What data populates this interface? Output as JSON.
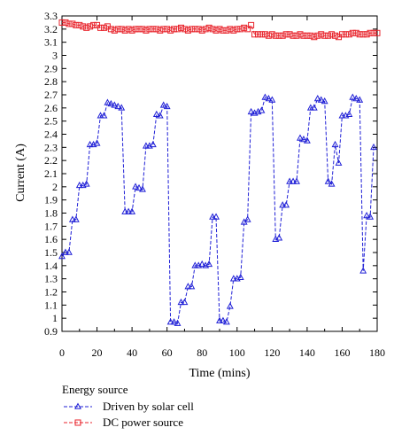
{
  "chart_data": {
    "type": "line",
    "xlabel": "Time (mins)",
    "ylabel": "Current (A)",
    "xlim": [
      0,
      180
    ],
    "ylim": [
      0.9,
      3.3
    ],
    "x_ticks": [
      0,
      20,
      40,
      60,
      80,
      100,
      120,
      140,
      160,
      180
    ],
    "y_ticks": [
      0.9,
      1,
      1.1,
      1.2,
      1.3,
      1.4,
      1.5,
      1.6,
      1.7,
      1.8,
      1.9,
      2,
      2.1,
      2.2,
      2.3,
      2.4,
      2.5,
      2.6,
      2.7,
      2.8,
      2.9,
      3,
      3.1,
      3.2,
      3.3
    ],
    "legend": {
      "title": "Energy source",
      "placement": "bottom-left"
    },
    "series": [
      {
        "name": "Driven by solar cell",
        "color": "#1f1fd6",
        "marker": "triangle",
        "line_style": "dashed",
        "x": [
          0,
          2,
          4,
          6,
          8,
          10,
          12,
          14,
          16,
          18,
          20,
          22,
          24,
          26,
          28,
          30,
          32,
          34,
          36,
          38,
          40,
          42,
          44,
          46,
          48,
          50,
          52,
          54,
          56,
          58,
          60,
          62,
          64,
          66,
          68,
          70,
          72,
          74,
          76,
          78,
          80,
          82,
          84,
          86,
          88,
          90,
          92,
          94,
          96,
          98,
          100,
          102,
          104,
          106,
          108,
          110,
          112,
          114,
          116,
          118,
          120,
          122,
          124,
          126,
          128,
          130,
          132,
          134,
          136,
          138,
          140,
          142,
          144,
          146,
          148,
          150,
          152,
          154,
          156,
          158,
          160,
          162,
          164,
          166,
          168,
          170,
          172,
          174,
          176,
          178
        ],
        "y": [
          1.47,
          1.5,
          1.5,
          1.75,
          1.75,
          2.01,
          2.01,
          2.02,
          2.32,
          2.32,
          2.33,
          2.54,
          2.54,
          2.64,
          2.63,
          2.62,
          2.61,
          2.6,
          1.81,
          1.81,
          1.81,
          2.0,
          1.99,
          1.98,
          2.31,
          2.31,
          2.32,
          2.55,
          2.54,
          2.62,
          2.61,
          0.97,
          0.97,
          0.96,
          1.12,
          1.12,
          1.24,
          1.24,
          1.4,
          1.4,
          1.41,
          1.4,
          1.41,
          1.77,
          1.77,
          0.98,
          0.98,
          0.97,
          1.09,
          1.3,
          1.3,
          1.31,
          1.73,
          1.75,
          2.57,
          2.56,
          2.57,
          2.58,
          2.68,
          2.67,
          2.66,
          1.6,
          1.61,
          1.86,
          1.86,
          2.04,
          2.04,
          2.04,
          2.37,
          2.36,
          2.35,
          2.6,
          2.6,
          2.67,
          2.66,
          2.65,
          2.04,
          2.02,
          2.32,
          2.18,
          2.54,
          2.54,
          2.55,
          2.68,
          2.67,
          2.66,
          1.36,
          1.78,
          1.77,
          2.3
        ]
      },
      {
        "name": "DC power source",
        "color": "#e8232b",
        "marker": "square",
        "line_style": "dashed",
        "x": [
          0,
          2,
          4,
          6,
          8,
          10,
          12,
          14,
          16,
          18,
          20,
          22,
          24,
          26,
          28,
          30,
          32,
          34,
          36,
          38,
          40,
          42,
          44,
          46,
          48,
          50,
          52,
          54,
          56,
          58,
          60,
          62,
          64,
          66,
          68,
          70,
          72,
          74,
          76,
          78,
          80,
          82,
          84,
          86,
          88,
          90,
          92,
          94,
          96,
          98,
          100,
          102,
          104,
          106,
          108,
          110,
          112,
          114,
          116,
          118,
          120,
          122,
          124,
          126,
          128,
          130,
          132,
          134,
          136,
          138,
          140,
          142,
          144,
          146,
          148,
          150,
          152,
          154,
          156,
          158,
          160,
          162,
          164,
          166,
          168,
          170,
          172,
          174,
          176,
          178,
          180
        ],
        "y": [
          3.25,
          3.25,
          3.24,
          3.24,
          3.23,
          3.23,
          3.22,
          3.21,
          3.22,
          3.23,
          3.23,
          3.21,
          3.21,
          3.22,
          3.2,
          3.19,
          3.2,
          3.2,
          3.19,
          3.2,
          3.19,
          3.2,
          3.2,
          3.2,
          3.19,
          3.2,
          3.2,
          3.2,
          3.19,
          3.2,
          3.2,
          3.19,
          3.2,
          3.2,
          3.21,
          3.2,
          3.19,
          3.2,
          3.2,
          3.2,
          3.19,
          3.2,
          3.21,
          3.2,
          3.19,
          3.2,
          3.19,
          3.19,
          3.2,
          3.19,
          3.2,
          3.2,
          3.21,
          3.2,
          3.23,
          3.16,
          3.16,
          3.16,
          3.16,
          3.15,
          3.16,
          3.15,
          3.15,
          3.15,
          3.16,
          3.16,
          3.15,
          3.15,
          3.16,
          3.15,
          3.15,
          3.15,
          3.14,
          3.15,
          3.16,
          3.15,
          3.15,
          3.16,
          3.15,
          3.14,
          3.16,
          3.16,
          3.16,
          3.17,
          3.17,
          3.16,
          3.16,
          3.16,
          3.17,
          3.17,
          3.17
        ]
      }
    ]
  }
}
